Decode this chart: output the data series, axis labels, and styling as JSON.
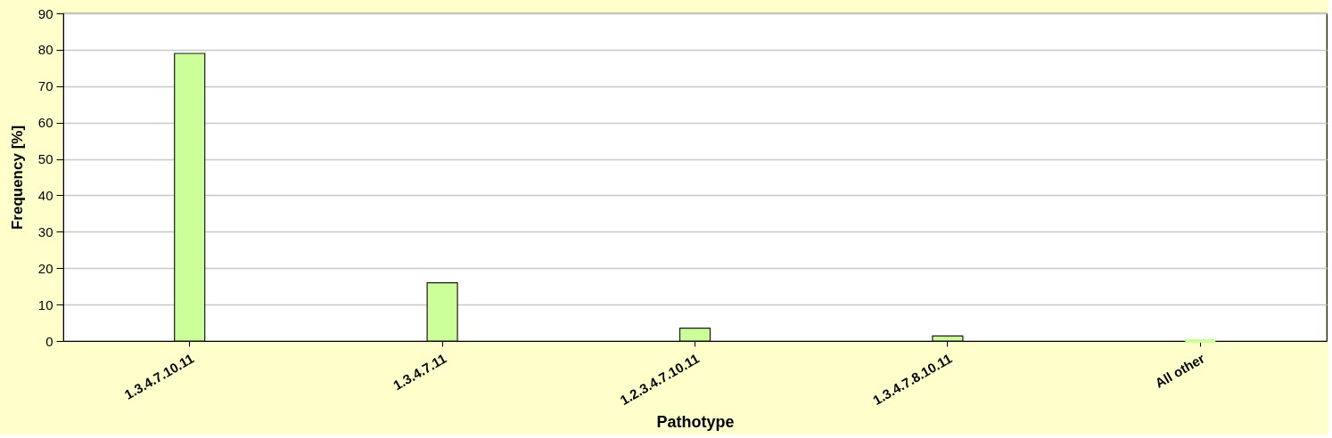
{
  "chart_data": {
    "type": "bar",
    "xlabel": "Pathotype",
    "ylabel": "Frequency [%]",
    "categories": [
      "1.3.4.7.10.11",
      "1.3.4.7.11",
      "1.2.3.4.7.10.11",
      "1.3.4.7.8.10.11",
      "All other"
    ],
    "values": [
      79,
      16,
      3.5,
      1.4,
      0
    ],
    "color": "#ccff99",
    "ylim": [
      0,
      90
    ],
    "yticks": [
      0,
      10,
      20,
      30,
      40,
      50,
      60,
      70,
      80,
      90
    ],
    "grid": "y"
  }
}
